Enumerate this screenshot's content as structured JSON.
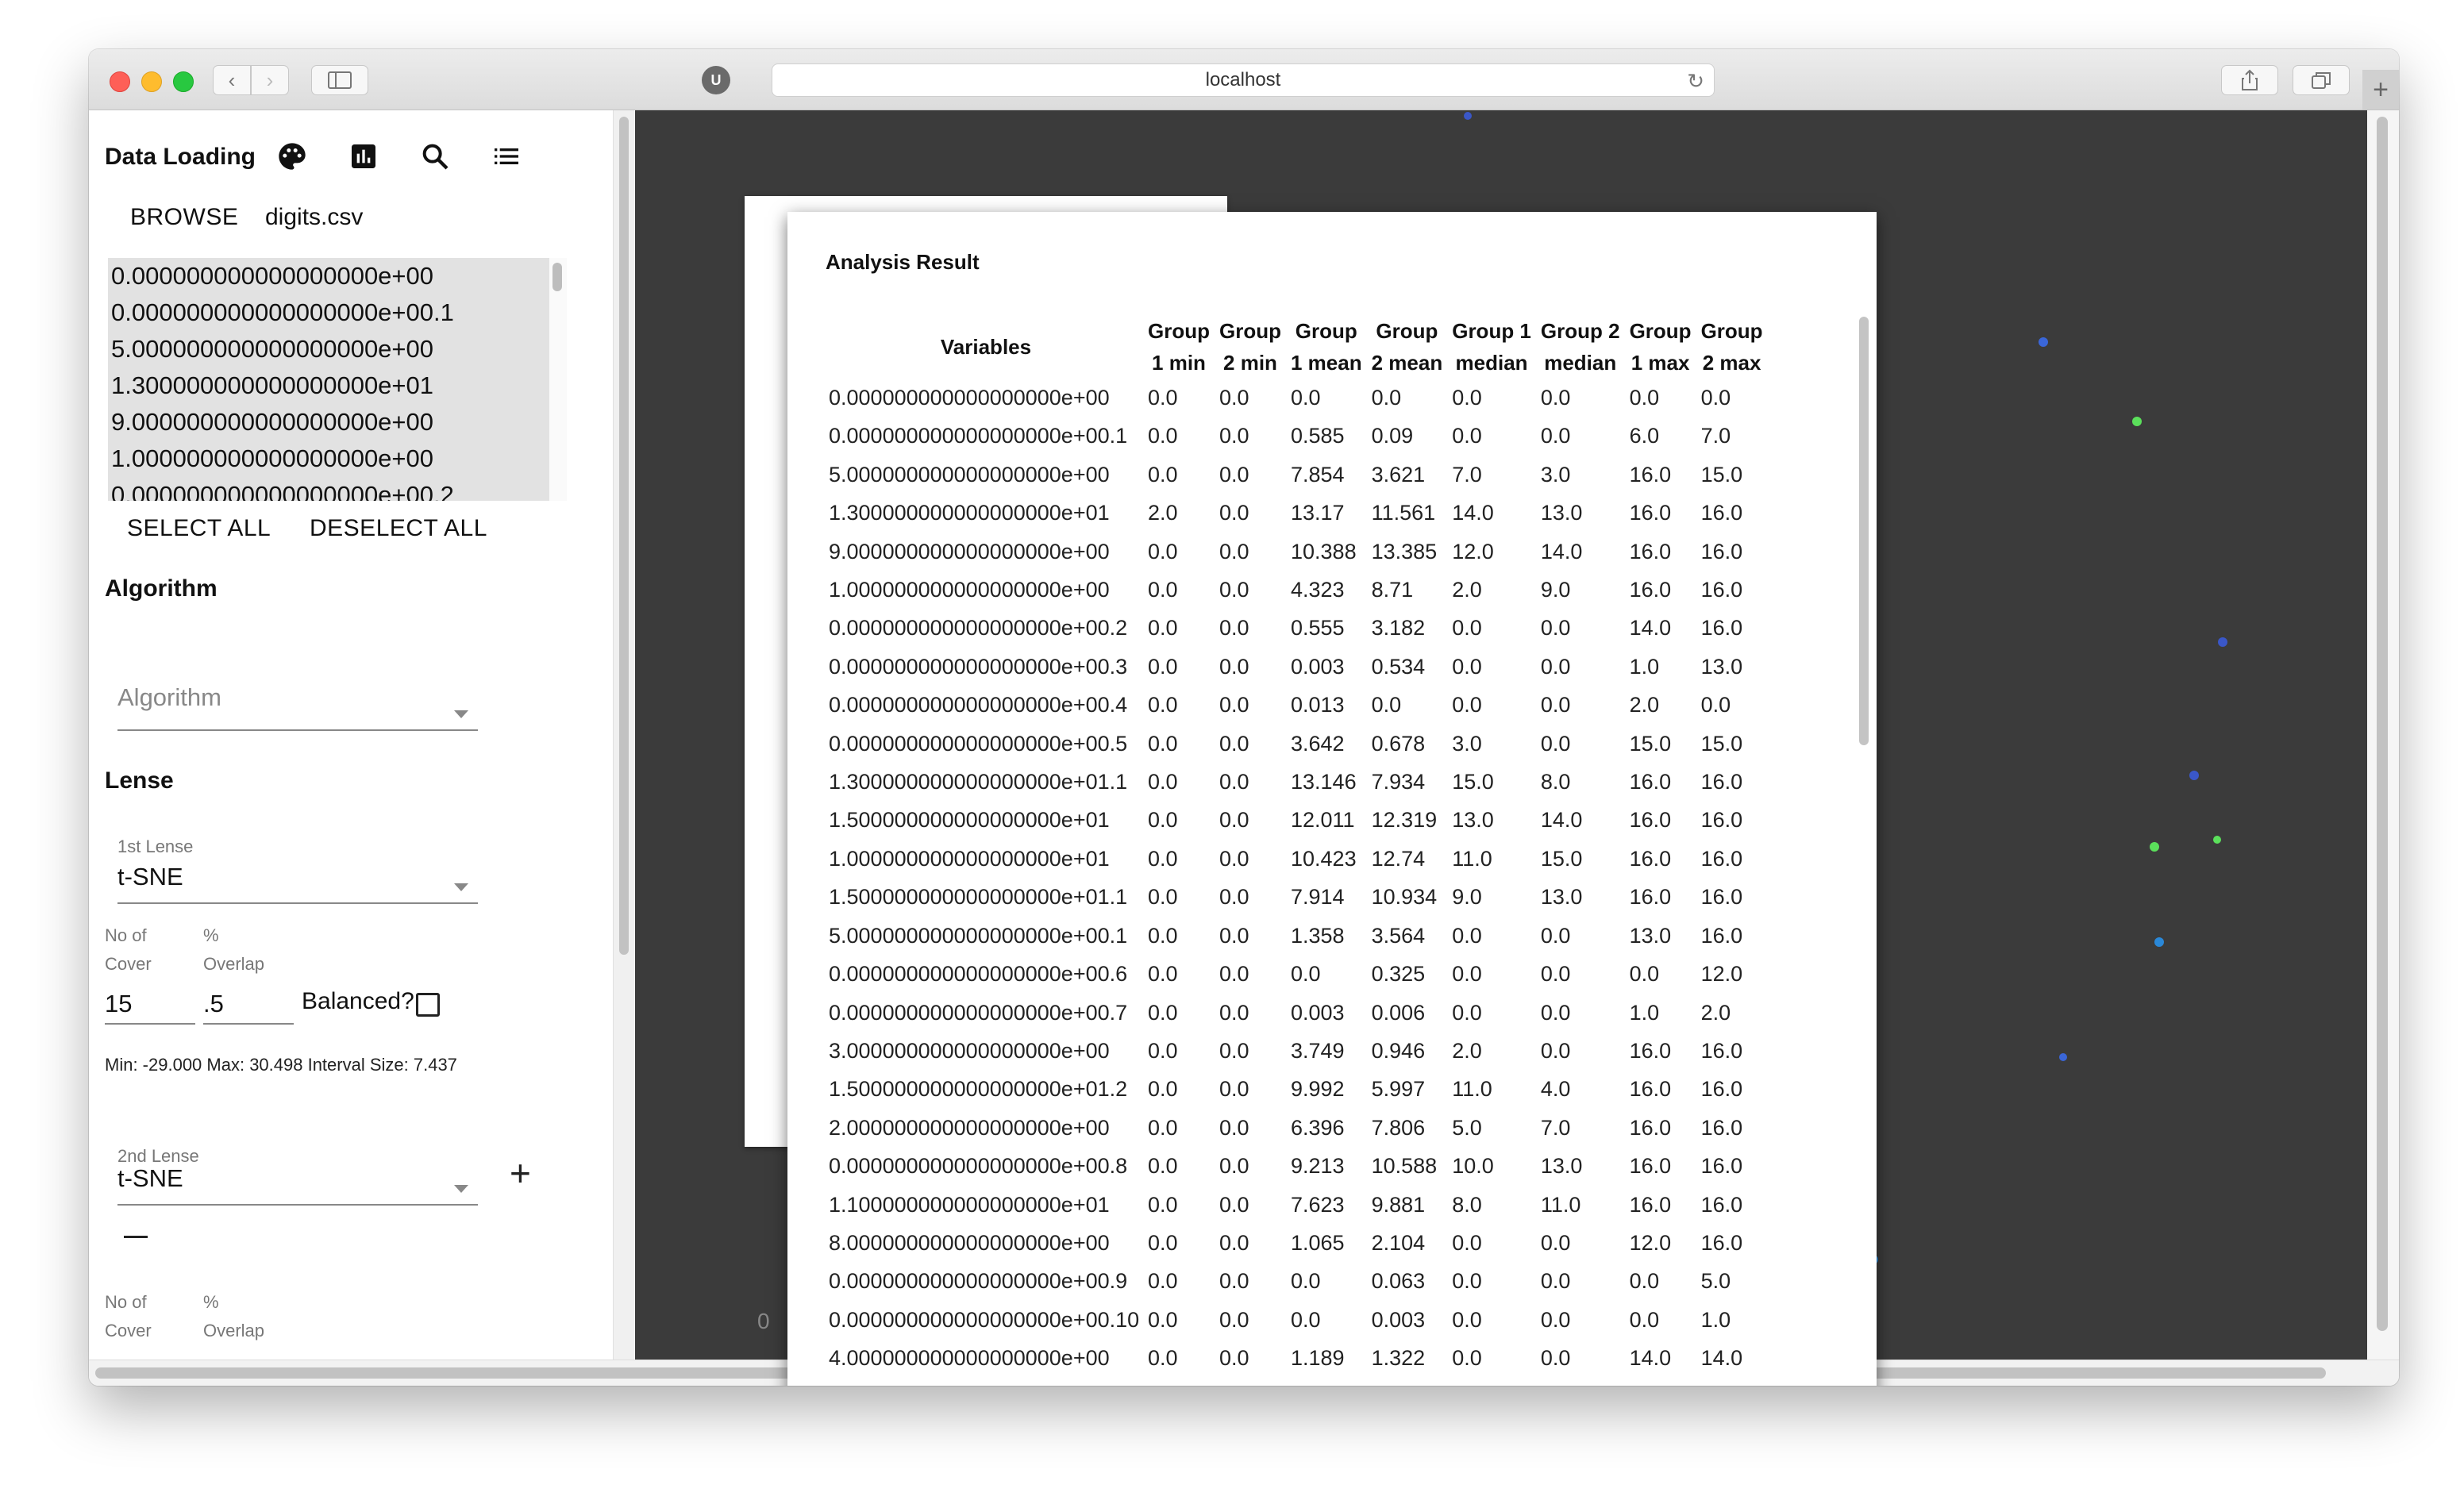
{
  "browser": {
    "url": "localhost",
    "extension_label": "U",
    "new_tab_label": "+"
  },
  "left_panel": {
    "title": "Data Loading",
    "icons": [
      "palette-icon",
      "bar-chart-icon",
      "search-icon",
      "list-icon"
    ],
    "browse_label": "BROWSE",
    "file_name": "digits.csv",
    "variables": [
      "0.000000000000000000e+00",
      "0.000000000000000000e+00.1",
      "5.000000000000000000e+00",
      "1.300000000000000000e+01",
      "9.000000000000000000e+00",
      "1.000000000000000000e+00",
      "0.000000000000000000e+00.2"
    ],
    "select_all_label": "SELECT ALL",
    "deselect_all_label": "DESELECT ALL",
    "algorithm_heading": "Algorithm",
    "algorithm_placeholder": "Algorithm",
    "lense_heading": "Lense",
    "lense1": {
      "label": "1st Lense",
      "value": "t-SNE",
      "cover_label_1": "No of",
      "cover_label_2": "Cover",
      "overlap_label_1": "%",
      "overlap_label_2": "Overlap",
      "cover_value": "15",
      "overlap_value": ".5",
      "balanced_label": "Balanced?"
    },
    "info": "Min: -29.000 Max: 30.498 Interval Size: 7.437",
    "lense2": {
      "label": "2nd Lense",
      "value": "t-SNE",
      "cover_label_1": "No of",
      "cover_label_2": "Cover",
      "overlap_label_1": "%",
      "overlap_label_2": "Overlap",
      "add_label": "+"
    }
  },
  "canvas": {
    "axis_zero": "0",
    "background": "#3b3b3b"
  },
  "modal": {
    "title": "Analysis Result",
    "headers": [
      [
        "Variables"
      ],
      [
        "Group",
        "1 min"
      ],
      [
        "Group",
        "2 min"
      ],
      [
        "Group",
        "1 mean"
      ],
      [
        "Group",
        "2 mean"
      ],
      [
        "Group 1",
        "median"
      ],
      [
        "Group 2",
        "median"
      ],
      [
        "Group",
        "1 max"
      ],
      [
        "Group",
        "2 max"
      ]
    ],
    "rows": [
      [
        "0.000000000000000000e+00",
        "0.0",
        "0.0",
        "0.0",
        "0.0",
        "0.0",
        "0.0",
        "0.0",
        "0.0"
      ],
      [
        "0.000000000000000000e+00.1",
        "0.0",
        "0.0",
        "0.585",
        "0.09",
        "0.0",
        "0.0",
        "6.0",
        "7.0"
      ],
      [
        "5.000000000000000000e+00",
        "0.0",
        "0.0",
        "7.854",
        "3.621",
        "7.0",
        "3.0",
        "16.0",
        "15.0"
      ],
      [
        "1.300000000000000000e+01",
        "2.0",
        "0.0",
        "13.17",
        "11.561",
        "14.0",
        "13.0",
        "16.0",
        "16.0"
      ],
      [
        "9.000000000000000000e+00",
        "0.0",
        "0.0",
        "10.388",
        "13.385",
        "12.0",
        "14.0",
        "16.0",
        "16.0"
      ],
      [
        "1.000000000000000000e+00",
        "0.0",
        "0.0",
        "4.323",
        "8.71",
        "2.0",
        "9.0",
        "16.0",
        "16.0"
      ],
      [
        "0.000000000000000000e+00.2",
        "0.0",
        "0.0",
        "0.555",
        "3.182",
        "0.0",
        "0.0",
        "14.0",
        "16.0"
      ],
      [
        "0.000000000000000000e+00.3",
        "0.0",
        "0.0",
        "0.003",
        "0.534",
        "0.0",
        "0.0",
        "1.0",
        "13.0"
      ],
      [
        "0.000000000000000000e+00.4",
        "0.0",
        "0.0",
        "0.013",
        "0.0",
        "0.0",
        "0.0",
        "2.0",
        "0.0"
      ],
      [
        "0.000000000000000000e+00.5",
        "0.0",
        "0.0",
        "3.642",
        "0.678",
        "3.0",
        "0.0",
        "15.0",
        "15.0"
      ],
      [
        "1.300000000000000000e+01.1",
        "0.0",
        "0.0",
        "13.146",
        "7.934",
        "15.0",
        "8.0",
        "16.0",
        "16.0"
      ],
      [
        "1.500000000000000000e+01",
        "0.0",
        "0.0",
        "12.011",
        "12.319",
        "13.0",
        "14.0",
        "16.0",
        "16.0"
      ],
      [
        "1.000000000000000000e+01",
        "0.0",
        "0.0",
        "10.423",
        "12.74",
        "11.0",
        "15.0",
        "16.0",
        "16.0"
      ],
      [
        "1.500000000000000000e+01.1",
        "0.0",
        "0.0",
        "7.914",
        "10.934",
        "9.0",
        "13.0",
        "16.0",
        "16.0"
      ],
      [
        "5.000000000000000000e+00.1",
        "0.0",
        "0.0",
        "1.358",
        "3.564",
        "0.0",
        "0.0",
        "13.0",
        "16.0"
      ],
      [
        "0.000000000000000000e+00.6",
        "0.0",
        "0.0",
        "0.0",
        "0.325",
        "0.0",
        "0.0",
        "0.0",
        "12.0"
      ],
      [
        "0.000000000000000000e+00.7",
        "0.0",
        "0.0",
        "0.003",
        "0.006",
        "0.0",
        "0.0",
        "1.0",
        "2.0"
      ],
      [
        "3.000000000000000000e+00",
        "0.0",
        "0.0",
        "3.749",
        "0.946",
        "2.0",
        "0.0",
        "16.0",
        "16.0"
      ],
      [
        "1.500000000000000000e+01.2",
        "0.0",
        "0.0",
        "9.992",
        "5.997",
        "11.0",
        "4.0",
        "16.0",
        "16.0"
      ],
      [
        "2.000000000000000000e+00",
        "0.0",
        "0.0",
        "6.396",
        "7.806",
        "5.0",
        "7.0",
        "16.0",
        "16.0"
      ],
      [
        "0.000000000000000000e+00.8",
        "0.0",
        "0.0",
        "9.213",
        "10.588",
        "10.0",
        "13.0",
        "16.0",
        "16.0"
      ],
      [
        "1.100000000000000000e+01",
        "0.0",
        "0.0",
        "7.623",
        "9.881",
        "8.0",
        "11.0",
        "16.0",
        "16.0"
      ],
      [
        "8.000000000000000000e+00",
        "0.0",
        "0.0",
        "1.065",
        "2.104",
        "0.0",
        "0.0",
        "12.0",
        "16.0"
      ],
      [
        "0.000000000000000000e+00.9",
        "0.0",
        "0.0",
        "0.0",
        "0.063",
        "0.0",
        "0.0",
        "0.0",
        "5.0"
      ],
      [
        "0.000000000000000000e+00.10",
        "0.0",
        "0.0",
        "0.0",
        "0.003",
        "0.0",
        "0.0",
        "0.0",
        "1.0"
      ],
      [
        "4.000000000000000000e+00",
        "0.0",
        "0.0",
        "1.189",
        "1.322",
        "0.0",
        "0.0",
        "14.0",
        "14.0"
      ]
    ]
  }
}
